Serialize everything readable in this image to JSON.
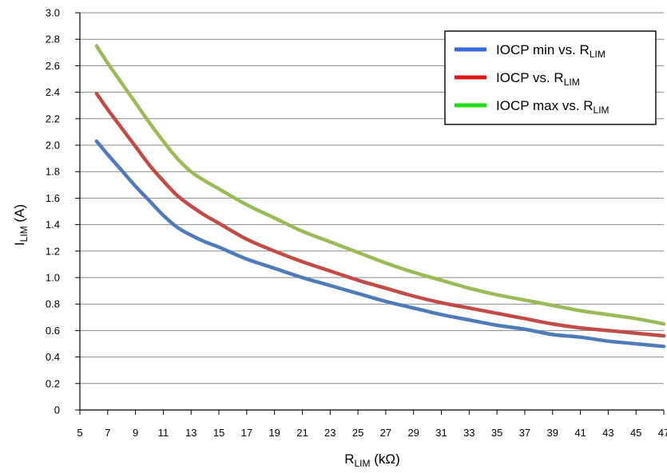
{
  "chart_data": {
    "type": "line",
    "xlabel": {
      "main": "R",
      "sub": "LIM",
      "suffix": " (kΩ)"
    },
    "ylabel": {
      "main": "I",
      "sub": "LIM",
      "suffix": " (A)"
    },
    "xlim": [
      5,
      47
    ],
    "ylim": [
      0,
      3.0
    ],
    "x_ticks": [
      5,
      7,
      9,
      11,
      13,
      15,
      17,
      19,
      21,
      23,
      25,
      27,
      29,
      31,
      33,
      35,
      37,
      39,
      41,
      43,
      45,
      47
    ],
    "y_ticks": [
      0,
      0.2,
      0.4,
      0.6,
      0.8,
      1.0,
      1.2,
      1.4,
      1.6,
      1.8,
      2.0,
      2.2,
      2.4,
      2.6,
      2.8,
      3.0
    ],
    "y_tick_labels": [
      "0",
      "0.2",
      "0.4",
      "0.6",
      "0.8",
      "1.0",
      "1.2",
      "1.4",
      "1.6",
      "1.8",
      "2.0",
      "2.2",
      "2.4",
      "2.6",
      "2.8",
      "3.0"
    ],
    "grid": "horizontal",
    "legend_position": "top-right",
    "series": [
      {
        "name": "IOCP min vs. R",
        "name_sub": "LIM",
        "legend_color": "#3a66e0",
        "line_color": "#4f7bb8",
        "x": [
          6.2,
          7,
          8,
          9,
          10,
          11,
          12,
          13,
          14,
          15,
          17,
          19,
          21,
          23,
          25,
          27,
          29,
          31,
          33,
          35,
          37,
          39,
          41,
          43,
          45,
          47
        ],
        "y": [
          2.03,
          1.93,
          1.81,
          1.69,
          1.58,
          1.47,
          1.38,
          1.32,
          1.27,
          1.23,
          1.14,
          1.07,
          1.0,
          0.94,
          0.88,
          0.82,
          0.77,
          0.72,
          0.68,
          0.64,
          0.61,
          0.57,
          0.55,
          0.52,
          0.5,
          0.48
        ]
      },
      {
        "name": "IOCP vs. R",
        "name_sub": "LIM",
        "legend_color": "#e01a1a",
        "line_color": "#c14b47",
        "x": [
          6.2,
          7,
          8,
          9,
          10,
          11,
          12,
          13,
          14,
          15,
          17,
          19,
          21,
          23,
          25,
          27,
          29,
          31,
          33,
          35,
          37,
          39,
          41,
          43,
          45,
          47
        ],
        "y": [
          2.39,
          2.27,
          2.13,
          1.99,
          1.85,
          1.73,
          1.62,
          1.54,
          1.47,
          1.41,
          1.29,
          1.2,
          1.12,
          1.05,
          0.98,
          0.92,
          0.86,
          0.81,
          0.77,
          0.73,
          0.69,
          0.65,
          0.62,
          0.6,
          0.58,
          0.56
        ]
      },
      {
        "name": "IOCP max vs. R",
        "name_sub": "LIM",
        "legend_color": "#1fdc1f",
        "line_color": "#9bbb59",
        "x": [
          6.2,
          7,
          8,
          9,
          10,
          11,
          12,
          13,
          14,
          15,
          17,
          19,
          21,
          23,
          25,
          27,
          29,
          31,
          33,
          35,
          37,
          39,
          41,
          43,
          45,
          47
        ],
        "y": [
          2.75,
          2.62,
          2.47,
          2.32,
          2.17,
          2.03,
          1.9,
          1.8,
          1.73,
          1.67,
          1.55,
          1.45,
          1.35,
          1.27,
          1.19,
          1.11,
          1.04,
          0.98,
          0.92,
          0.87,
          0.83,
          0.79,
          0.75,
          0.72,
          0.69,
          0.65
        ]
      }
    ]
  }
}
